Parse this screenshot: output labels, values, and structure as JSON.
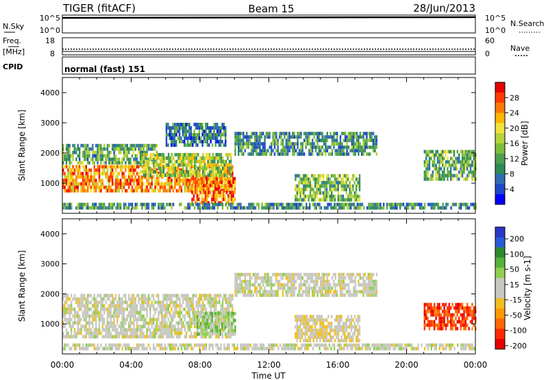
{
  "header": {
    "title": "TIGER (fitACF)",
    "beam": "Beam 15",
    "date": "28/Jun/2013"
  },
  "strips": {
    "nsky": {
      "label": "N.Sky",
      "ticks": [
        "10^5",
        "10^0"
      ]
    },
    "nsearch": {
      "label": "N.Search",
      "ticks": [
        "10^5",
        "10^0"
      ]
    },
    "freq": {
      "label_line1": "Freq.",
      "label_line2": "[MHz]",
      "ticks": [
        "18",
        "8"
      ],
      "range": [
        8,
        18
      ],
      "value": 10
    },
    "nave": {
      "label": "Nave",
      "ticks": [
        "60",
        "0"
      ],
      "range": [
        0,
        60
      ],
      "value": 20
    },
    "cpid": {
      "label": "CPID",
      "value": "normal (fast) 151"
    }
  },
  "xaxis": {
    "label": "Time UT",
    "ticks": [
      "00:00",
      "04:00",
      "08:00",
      "12:00",
      "16:00",
      "20:00",
      "00:00"
    ]
  },
  "colors": {
    "power_scale": [
      "#0000ff",
      "#1e46c8",
      "#2f6db4",
      "#2e8b57",
      "#4f9e4f",
      "#7cbe3a",
      "#b8d23a",
      "#f2e33c",
      "#ffb400",
      "#ff7a00",
      "#ff3c00",
      "#e60000"
    ],
    "velocity_scale": [
      "#2a38c8",
      "#2a5ad8",
      "#2e8b2e",
      "#55b33a",
      "#90d050",
      "#c8c8c0",
      "#c8c8c0",
      "#f0c020",
      "#ff9900",
      "#ff6600",
      "#ff2a00",
      "#e60000"
    ]
  },
  "chart_data": [
    {
      "type": "heatmap",
      "name": "power",
      "ylabel": "Slant Range [km]",
      "ylim": [
        0,
        4500
      ],
      "yticks": [
        "1000",
        "2000",
        "3000",
        "4000"
      ],
      "xlim_hours": [
        0,
        24
      ],
      "colorbar": {
        "label": "Power [dB]",
        "range": [
          0,
          32
        ],
        "ticks": [
          "4",
          "8",
          "12",
          "16",
          "20",
          "24",
          "28"
        ]
      },
      "regions": [
        {
          "t0": 0.0,
          "t1": 9.9,
          "r0": 700,
          "r1": 1600,
          "level": 24
        },
        {
          "t0": 0.0,
          "t1": 5.5,
          "r0": 1700,
          "r1": 2300,
          "level": 12
        },
        {
          "t0": 4.5,
          "t1": 9.8,
          "r0": 1300,
          "r1": 2000,
          "level": 16
        },
        {
          "t0": 7.5,
          "t1": 10.0,
          "r0": 400,
          "r1": 1200,
          "level": 26
        },
        {
          "t0": 6.0,
          "t1": 9.5,
          "r0": 2300,
          "r1": 3000,
          "level": 8
        },
        {
          "t0": 10.0,
          "t1": 18.3,
          "r0": 2000,
          "r1": 2700,
          "level": 10
        },
        {
          "t0": 13.5,
          "t1": 17.3,
          "r0": 500,
          "r1": 1300,
          "level": 14
        },
        {
          "t0": 21.0,
          "t1": 24.0,
          "r0": 1100,
          "r1": 2100,
          "level": 13
        },
        {
          "t0": 0.0,
          "t1": 24.0,
          "r0": 150,
          "r1": 350,
          "level": 10
        }
      ]
    },
    {
      "type": "heatmap",
      "name": "velocity",
      "ylabel": "Slant Range [km]",
      "ylim": [
        0,
        4500
      ],
      "yticks": [
        "1000",
        "2000",
        "3000",
        "4000"
      ],
      "xlim_hours": [
        0,
        24
      ],
      "colorbar": {
        "label": "Velocity [m s-1]",
        "range": [
          -250,
          250
        ],
        "ticks": [
          "200",
          "100",
          "50",
          "15",
          "-15",
          "-50",
          "-100",
          "-200"
        ]
      },
      "regions": [
        {
          "t0": 0.0,
          "t1": 9.9,
          "r0": 600,
          "r1": 2000,
          "level": 0
        },
        {
          "t0": 7.8,
          "t1": 10.0,
          "r0": 700,
          "r1": 1400,
          "level": 60
        },
        {
          "t0": 10.0,
          "t1": 18.3,
          "r0": 2000,
          "r1": 2700,
          "level": 0
        },
        {
          "t0": 13.5,
          "t1": 17.3,
          "r0": 500,
          "r1": 1300,
          "level": -20
        },
        {
          "t0": 21.0,
          "t1": 24.0,
          "r0": 800,
          "r1": 1700,
          "level": -180
        },
        {
          "t0": 0.0,
          "t1": 24.0,
          "r0": 150,
          "r1": 350,
          "level": 0
        }
      ]
    }
  ]
}
